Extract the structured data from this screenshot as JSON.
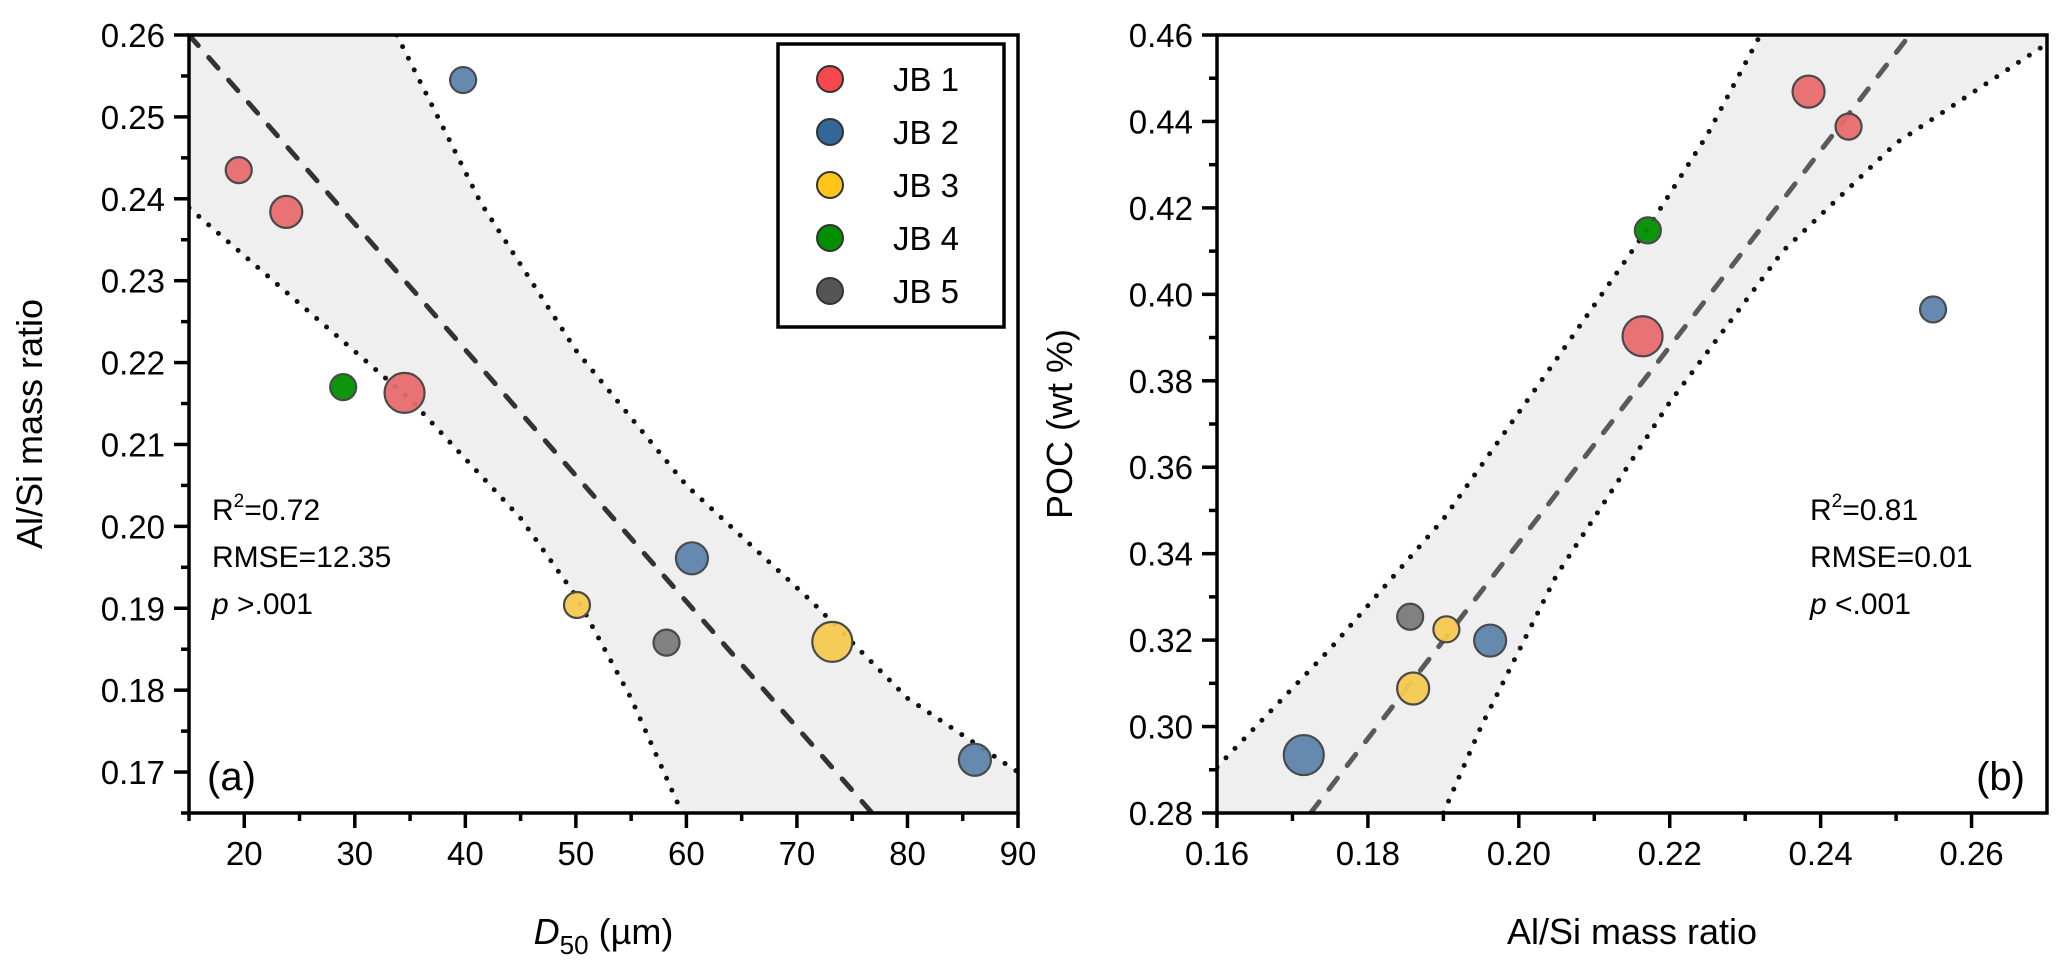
{
  "chart_data": [
    {
      "panel": "a",
      "type": "scatter",
      "panel_label": "(a)",
      "xlabel": {
        "main": "D",
        "sub": "50",
        "unit": " (µm)"
      },
      "ylabel": "Al/Si mass ratio",
      "xlim": [
        15,
        90
      ],
      "ylim": [
        0.165,
        0.26
      ],
      "xticks": [
        20,
        30,
        40,
        50,
        60,
        70,
        80,
        90
      ],
      "xtick_labels": [
        "20",
        "30",
        "40",
        "50",
        "60",
        "70",
        "80",
        "90"
      ],
      "xminor": [
        15,
        25,
        35,
        45,
        55,
        65,
        75,
        85
      ],
      "yticks": [
        0.17,
        0.18,
        0.19,
        0.2,
        0.21,
        0.22,
        0.23,
        0.24,
        0.25,
        0.26
      ],
      "ytick_labels": [
        "0.17",
        "0.18",
        "0.19",
        "0.20",
        "0.21",
        "0.22",
        "0.23",
        "0.24",
        "0.25",
        "0.26"
      ],
      "yminor": [
        0.165,
        0.175,
        0.185,
        0.195,
        0.205,
        0.215,
        0.225,
        0.235,
        0.245,
        0.255
      ],
      "stats": {
        "r2": "R",
        "r2_sup": "2",
        "r2_val": "=0.72",
        "rmse": "RMSE=12.35",
        "p_sym": "p",
        "p_val": " >.001"
      },
      "fit_line": {
        "style": "dashed",
        "points": [
          [
            15,
            0.26
          ],
          [
            76.8,
            0.165
          ]
        ]
      },
      "ci_lower": {
        "style": "dotted",
        "points": [
          [
            15,
            0.2389
          ],
          [
            25,
            0.2272
          ],
          [
            35,
            0.2155
          ],
          [
            45,
            0.201
          ],
          [
            50,
            0.1915
          ],
          [
            55,
            0.179
          ],
          [
            59.6,
            0.165
          ]
        ]
      },
      "ci_upper": {
        "style": "dotted",
        "points": [
          [
            33.8,
            0.26
          ],
          [
            41.4,
            0.2395
          ],
          [
            50,
            0.2215
          ],
          [
            60,
            0.205
          ],
          [
            71.2,
            0.191
          ],
          [
            80,
            0.179
          ],
          [
            90,
            0.17
          ]
        ]
      },
      "band_color": "#efefef",
      "points": [
        {
          "group": "JB 1",
          "x": 19.5,
          "y": 0.2435,
          "size": "small"
        },
        {
          "group": "JB 1",
          "x": 23.8,
          "y": 0.2384,
          "size": "medium"
        },
        {
          "group": "JB 1",
          "x": 34.5,
          "y": 0.2163,
          "size": "large"
        },
        {
          "group": "JB 2",
          "x": 39.8,
          "y": 0.2545,
          "size": "small"
        },
        {
          "group": "JB 2",
          "x": 60.5,
          "y": 0.1961,
          "size": "medium"
        },
        {
          "group": "JB 2",
          "x": 86.1,
          "y": 0.1715,
          "size": "medium"
        },
        {
          "group": "JB 3",
          "x": 50.1,
          "y": 0.1904,
          "size": "small"
        },
        {
          "group": "JB 3",
          "x": 73.2,
          "y": 0.1859,
          "size": "large"
        },
        {
          "group": "JB 4",
          "x": 28.95,
          "y": 0.217,
          "size": "small"
        },
        {
          "group": "JB 5",
          "x": 58.2,
          "y": 0.1858,
          "size": "small"
        }
      ],
      "legend": {
        "position": "top-right",
        "entries": [
          {
            "label": "JB 1",
            "color": "#f5474c"
          },
          {
            "label": "JB 2",
            "color": "#336699"
          },
          {
            "label": "JB 3",
            "color": "#ffc61a"
          },
          {
            "label": "JB 4",
            "color": "#008f00"
          },
          {
            "label": "JB 5",
            "color": "#555555"
          }
        ]
      }
    },
    {
      "panel": "b",
      "type": "scatter",
      "panel_label": "(b)",
      "xlabel": {
        "main": "Al/Si mass ratio"
      },
      "ylabel": "POC (wt %)",
      "xlim": [
        0.16,
        0.27
      ],
      "ylim": [
        0.28,
        0.46
      ],
      "xticks": [
        0.16,
        0.18,
        0.2,
        0.22,
        0.24,
        0.26
      ],
      "xtick_labels": [
        "0.16",
        "0.18",
        "0.20",
        "0.22",
        "0.24",
        "0.26"
      ],
      "xminor": [
        0.17,
        0.19,
        0.21,
        0.23,
        0.25
      ],
      "yticks": [
        0.28,
        0.3,
        0.32,
        0.34,
        0.36,
        0.38,
        0.4,
        0.42,
        0.44,
        0.46
      ],
      "ytick_labels": [
        "0.28",
        "0.30",
        "0.32",
        "0.34",
        "0.36",
        "0.38",
        "0.40",
        "0.42",
        "0.44",
        "0.46"
      ],
      "yminor": [
        0.29,
        0.31,
        0.33,
        0.35,
        0.37,
        0.39,
        0.41,
        0.43,
        0.45
      ],
      "stats": {
        "r2": "R",
        "r2_sup": "2",
        "r2_val": "=0.81",
        "rmse": "RMSE=0.01",
        "p_sym": "p",
        "p_val": " <.001"
      },
      "fit_line": {
        "style": "dashed",
        "points": [
          [
            0.1724,
            0.28
          ],
          [
            0.2518,
            0.46
          ]
        ]
      },
      "ci_upper": {
        "style": "dotted",
        "points": [
          [
            0.16,
            0.2906
          ],
          [
            0.175,
            0.318
          ],
          [
            0.19,
            0.348
          ],
          [
            0.205,
            0.385
          ],
          [
            0.217,
            0.415
          ],
          [
            0.225,
            0.437
          ],
          [
            0.232,
            0.46
          ]
        ]
      },
      "ci_lower": {
        "style": "dotted",
        "points": [
          [
            0.19,
            0.28
          ],
          [
            0.195,
            0.3
          ],
          [
            0.205,
            0.335
          ],
          [
            0.22,
            0.375
          ],
          [
            0.235,
            0.41
          ],
          [
            0.25,
            0.435
          ],
          [
            0.27,
            0.458
          ]
        ]
      },
      "band_color": "#efefef",
      "points": [
        {
          "group": "JB 1",
          "x": 0.2384,
          "y": 0.4469,
          "size": "medium"
        },
        {
          "group": "JB 1",
          "x": 0.2437,
          "y": 0.4388,
          "size": "small"
        },
        {
          "group": "JB 1",
          "x": 0.2164,
          "y": 0.3903,
          "size": "large"
        },
        {
          "group": "JB 2",
          "x": 0.2549,
          "y": 0.3965,
          "size": "small"
        },
        {
          "group": "JB 2",
          "x": 0.1962,
          "y": 0.3199,
          "size": "medium"
        },
        {
          "group": "JB 2",
          "x": 0.1715,
          "y": 0.2934,
          "size": "large"
        },
        {
          "group": "JB 3",
          "x": 0.1904,
          "y": 0.3225,
          "size": "small"
        },
        {
          "group": "JB 3",
          "x": 0.186,
          "y": 0.3088,
          "size": "medium"
        },
        {
          "group": "JB 4",
          "x": 0.2171,
          "y": 0.4148,
          "size": "small"
        },
        {
          "group": "JB 5",
          "x": 0.1856,
          "y": 0.3254,
          "size": "small"
        }
      ]
    }
  ],
  "point_fill_colors": {
    "JB 1": "#e86a6e",
    "JB 2": "#5e84ab",
    "JB 3": "#f4c94f",
    "JB 4": "#008f00",
    "JB 5": "#7a7a7a"
  }
}
